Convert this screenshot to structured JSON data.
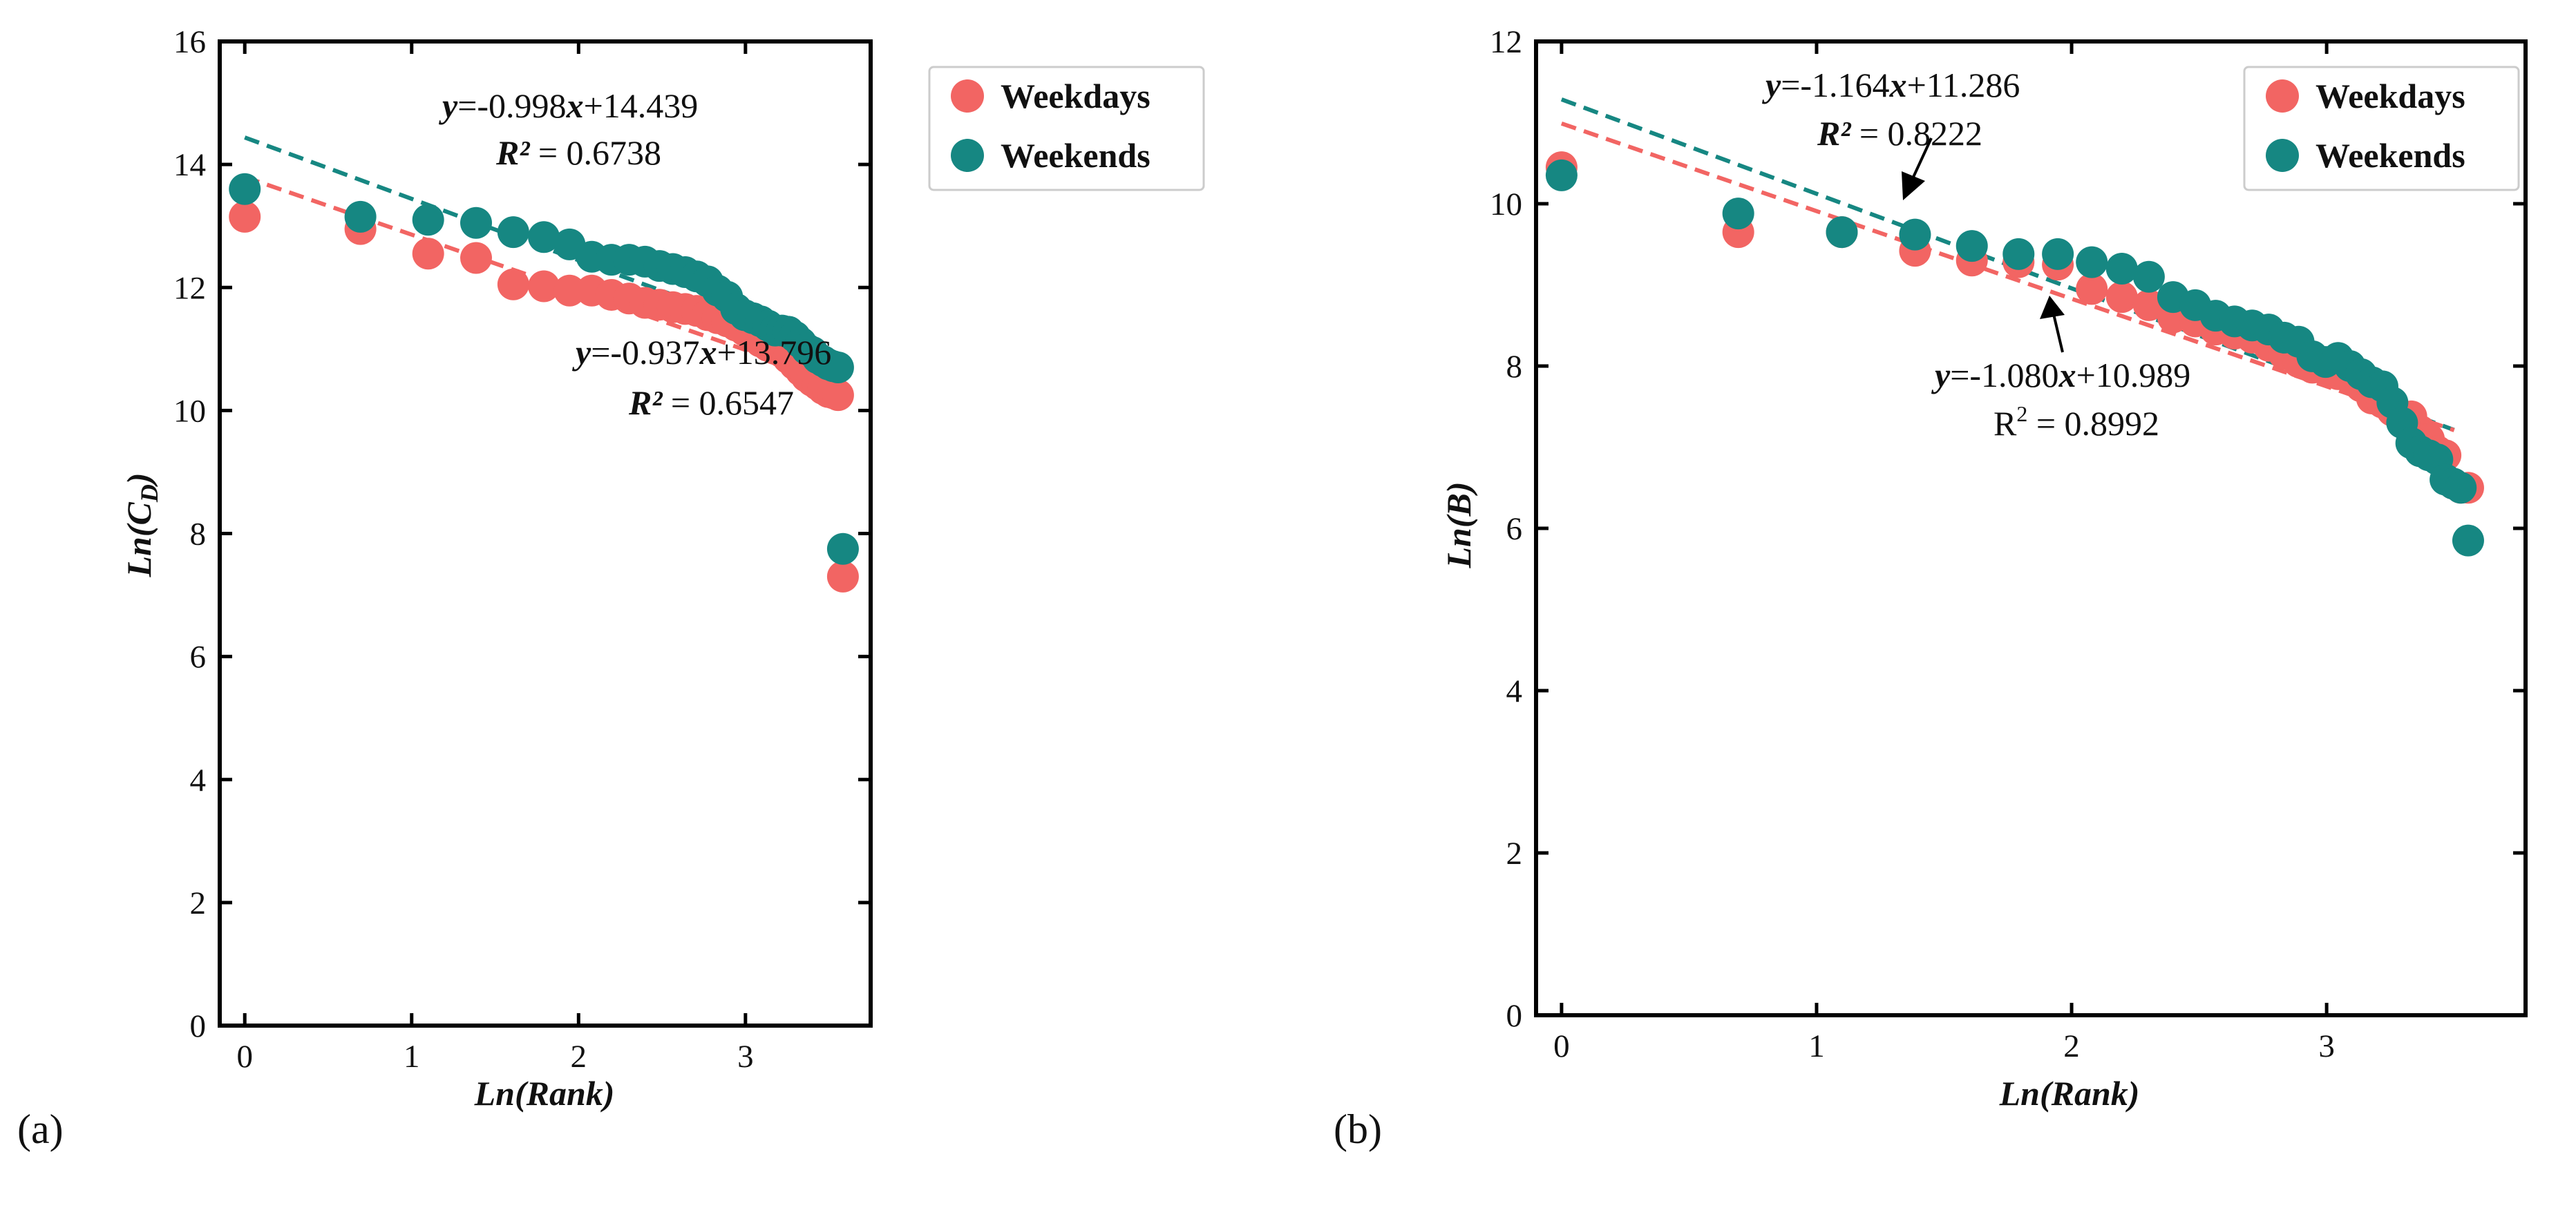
{
  "colors": {
    "weekdays": "#f26563",
    "weekends": "#168782",
    "axis": "#000000"
  },
  "chart_data": [
    {
      "type": "scatter",
      "panel_label": "(a)",
      "xlabel": "Ln(Rank)",
      "ylabel": "Ln(C_D)",
      "ylabel_main": "Ln(C",
      "ylabel_sub": "D",
      "ylabel_close": ")",
      "xlim": [
        -0.15,
        3.75
      ],
      "ylim": [
        0,
        16
      ],
      "xticks": [
        0,
        1,
        2,
        3
      ],
      "yticks": [
        0,
        2,
        4,
        6,
        8,
        10,
        12,
        14,
        16
      ],
      "legend": {
        "position": "top-right",
        "entries": [
          "Weekdays",
          "Weekends"
        ]
      },
      "series": [
        {
          "name": "Weekdays",
          "x": [
            0,
            0.693,
            1.099,
            1.386,
            1.609,
            1.792,
            1.946,
            2.079,
            2.197,
            2.303,
            2.398,
            2.485,
            2.565,
            2.639,
            2.708,
            2.773,
            2.833,
            2.89,
            2.944,
            2.996,
            3.045,
            3.091,
            3.135,
            3.178,
            3.219,
            3.258,
            3.296,
            3.332,
            3.367,
            3.401,
            3.434,
            3.466,
            3.497,
            3.526,
            3.555,
            3.584
          ],
          "y": [
            13.15,
            12.95,
            12.55,
            12.48,
            12.05,
            12.02,
            11.95,
            11.95,
            11.88,
            11.82,
            11.75,
            11.72,
            11.68,
            11.65,
            11.62,
            11.55,
            11.5,
            11.45,
            11.38,
            11.3,
            11.2,
            11.12,
            11.05,
            11.0,
            10.95,
            10.85,
            10.75,
            10.65,
            10.55,
            10.48,
            10.42,
            10.35,
            10.3,
            10.28,
            10.25,
            7.3
          ]
        },
        {
          "name": "Weekends",
          "x": [
            0,
            0.693,
            1.099,
            1.386,
            1.609,
            1.792,
            1.946,
            2.079,
            2.197,
            2.303,
            2.398,
            2.485,
            2.565,
            2.639,
            2.708,
            2.773,
            2.833,
            2.89,
            2.944,
            2.996,
            3.045,
            3.091,
            3.135,
            3.178,
            3.219,
            3.258,
            3.296,
            3.332,
            3.367,
            3.401,
            3.434,
            3.466,
            3.497,
            3.526,
            3.555,
            3.584
          ],
          "y": [
            13.6,
            13.15,
            13.1,
            13.05,
            12.9,
            12.82,
            12.7,
            12.5,
            12.45,
            12.45,
            12.42,
            12.35,
            12.3,
            12.25,
            12.18,
            12.1,
            11.95,
            11.85,
            11.65,
            11.55,
            11.5,
            11.45,
            11.38,
            11.3,
            11.3,
            11.28,
            11.2,
            11.1,
            11.0,
            10.95,
            10.85,
            10.8,
            10.75,
            10.72,
            10.7,
            7.75
          ]
        }
      ],
      "fits": [
        {
          "series": "Weekends",
          "slope": -0.998,
          "intercept": 14.439,
          "x_range": [
            0,
            3.52
          ],
          "eq_y": "y",
          "eq_rest": "=-0.998",
          "eq_x": "x",
          "eq_tail": "+14.439",
          "r2_label": "R²",
          "r2_rest": " = 0.6738",
          "r2_bold": true
        },
        {
          "series": "Weekdays",
          "slope": -0.937,
          "intercept": 13.796,
          "x_range": [
            0,
            3.52
          ],
          "eq_y": "y",
          "eq_rest": "=-0.937",
          "eq_x": "x",
          "eq_tail": "+13.796",
          "r2_label": "R²",
          "r2_rest": " = 0.6547",
          "r2_bold": true
        }
      ]
    },
    {
      "type": "scatter",
      "panel_label": "(b)",
      "xlabel": "Ln(Rank)",
      "ylabel": "Ln(B)",
      "xlim": [
        -0.1,
        3.78
      ],
      "ylim": [
        0,
        12
      ],
      "xticks": [
        0,
        1,
        2,
        3
      ],
      "yticks": [
        0,
        2,
        4,
        6,
        8,
        10,
        12
      ],
      "legend": {
        "position": "top-right",
        "entries": [
          "Weekdays",
          "Weekends"
        ]
      },
      "series": [
        {
          "name": "Weekdays",
          "x": [
            0,
            0.693,
            1.099,
            1.386,
            1.609,
            1.792,
            1.946,
            2.079,
            2.197,
            2.303,
            2.398,
            2.485,
            2.565,
            2.639,
            2.708,
            2.773,
            2.833,
            2.89,
            2.944,
            2.996,
            3.045,
            3.091,
            3.135,
            3.178,
            3.219,
            3.258,
            3.296,
            3.332,
            3.367,
            3.401,
            3.434,
            3.466,
            3.497,
            3.526,
            3.555
          ],
          "y": [
            10.45,
            9.65,
            9.65,
            9.42,
            9.3,
            9.28,
            9.25,
            8.95,
            8.85,
            8.75,
            8.6,
            8.55,
            8.45,
            8.4,
            8.35,
            8.25,
            8.15,
            8.05,
            7.98,
            7.95,
            7.9,
            7.85,
            7.75,
            7.6,
            7.55,
            7.45,
            7.38,
            7.38,
            7.2,
            7.1,
            6.95,
            6.9,
            6.55,
            6.5,
            6.5
          ]
        },
        {
          "name": "Weekends",
          "x": [
            0,
            0.693,
            1.099,
            1.386,
            1.609,
            1.792,
            1.946,
            2.079,
            2.197,
            2.303,
            2.398,
            2.485,
            2.565,
            2.639,
            2.708,
            2.773,
            2.833,
            2.89,
            2.944,
            2.996,
            3.045,
            3.091,
            3.135,
            3.178,
            3.219,
            3.258,
            3.296,
            3.332,
            3.367,
            3.401,
            3.434,
            3.466,
            3.497,
            3.526,
            3.555
          ],
          "y": [
            10.35,
            9.88,
            9.65,
            9.62,
            9.48,
            9.38,
            9.38,
            9.28,
            9.2,
            9.1,
            8.85,
            8.75,
            8.62,
            8.55,
            8.5,
            8.45,
            8.35,
            8.3,
            8.12,
            8.05,
            8.1,
            8.0,
            7.9,
            7.8,
            7.75,
            7.55,
            7.3,
            7.05,
            6.95,
            6.9,
            6.85,
            6.6,
            6.55,
            6.5,
            5.85
          ]
        }
      ],
      "fits": [
        {
          "series": "Weekends",
          "slope": -1.164,
          "intercept": 11.286,
          "x_range": [
            0,
            3.5
          ],
          "eq_y": "y",
          "eq_rest": "=-1.164",
          "eq_x": "x",
          "eq_tail": "+11.286",
          "r2_label": "R²",
          "r2_rest": " = 0.8222",
          "r2_bold": true
        },
        {
          "series": "Weekdays",
          "slope": -1.08,
          "intercept": 10.989,
          "x_range": [
            0,
            3.5
          ],
          "eq_y": "y",
          "eq_rest": "=-1.080",
          "eq_x": "x",
          "eq_tail": "+10.989",
          "r2_label": "R",
          "r2_sup": "2",
          "r2_rest": " = 0.8992",
          "r2_bold": false
        }
      ]
    }
  ]
}
